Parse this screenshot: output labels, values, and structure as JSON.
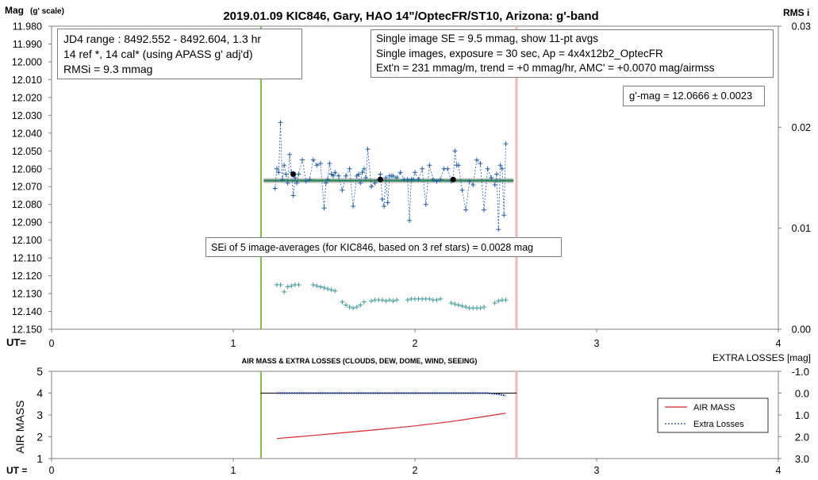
{
  "title": "2019.01.09 KIC846, Gary, HAO 14\"/OptecFR/ST10, Arizona: g'-band",
  "top_chart": {
    "ylabel_main": "Mag",
    "ylabel_sub": "(g' scale)",
    "y2label": "RMS i",
    "xlabel": "UT=",
    "info_left": [
      "JD4 range : 8492.552 - 8492.604,  1.3  hr",
      "14 ref *, 14 cal* (using APASS g' adj'd)",
      "RMSi = 9.3 mmag"
    ],
    "info_right": [
      "Single image SE = 9.5 mmag, show  11-pt avgs",
      "Single images, exposure = 30 sec, Ap = 4x4x12b2_OptecFR",
      "Ext'n = 231 mmag/m, trend =  +0 mmag/hr, AMC' = +0.0070 mag/airmss"
    ],
    "gmag_box": "g'-mag = 12.0666 ± 0.0023",
    "sei_box": "SEi of 5 image-averages (for KIC846, based on 3 ref stars) = 0.0028 mag",
    "colors": {
      "data": "#1f5fa8",
      "rms": "#3d9a9a",
      "avg_line": "#2e8b57",
      "avg_band": "#bfbfbf",
      "green_vline": "#7cc142",
      "pink_vline": "#f4b6b6"
    }
  },
  "bottom_chart": {
    "title": "AIR MASS & EXTRA LOSSES (CLOUDS, DEW, DOME, WIND, SEEING)",
    "ylabel": "AIR MASS",
    "y2label": "EXTRA LOSSES [mag]",
    "xlabel": "UT =",
    "legend": [
      "AIR MASS",
      "Extra Losses"
    ],
    "colors": {
      "airmass": "#d62728",
      "losses": "#1f3f9f"
    }
  },
  "chart_data": [
    {
      "type": "scatter",
      "title": "2019.01.09 KIC846, Gary, HAO 14\"/OptecFR/ST10, Arizona: g'-band",
      "xlabel": "UT=",
      "ylabel": "Mag (g' scale)",
      "xlim": [
        0,
        4
      ],
      "ylim": [
        12.15,
        11.98
      ],
      "y_inverted": true,
      "xticks": [
        "0",
        "1",
        "2",
        "3",
        "4"
      ],
      "yticks": [
        "11.980",
        "11.990",
        "12.000",
        "12.010",
        "12.020",
        "12.030",
        "12.040",
        "12.050",
        "12.060",
        "12.070",
        "12.080",
        "12.090",
        "12.100",
        "12.110",
        "12.120",
        "12.130",
        "12.140",
        "12.150"
      ],
      "y2lim": [
        0,
        0.03
      ],
      "y2ticks": [
        "0.00",
        "0.01",
        "0.02",
        "0.03"
      ],
      "series": [
        {
          "name": "single images",
          "x": [
            1.23,
            1.24,
            1.25,
            1.26,
            1.27,
            1.28,
            1.29,
            1.3,
            1.31,
            1.32,
            1.33,
            1.34,
            1.35,
            1.36,
            1.38,
            1.4,
            1.42,
            1.44,
            1.46,
            1.48,
            1.5,
            1.51,
            1.52,
            1.53,
            1.54,
            1.55,
            1.56,
            1.58,
            1.6,
            1.62,
            1.64,
            1.66,
            1.68,
            1.69,
            1.7,
            1.71,
            1.72,
            1.73,
            1.74,
            1.76,
            1.78,
            1.8,
            1.81,
            1.82,
            1.83,
            1.84,
            1.85,
            1.86,
            1.87,
            1.88,
            1.9,
            1.92,
            1.94,
            1.96,
            1.97,
            1.98,
            1.99,
            2.0,
            2.02,
            2.04,
            2.06,
            2.08,
            2.1,
            2.12,
            2.14,
            2.16,
            2.18,
            2.2,
            2.21,
            2.22,
            2.23,
            2.24,
            2.26,
            2.28,
            2.3,
            2.32,
            2.34,
            2.36,
            2.38,
            2.4,
            2.42,
            2.44,
            2.45,
            2.46,
            2.47,
            2.48,
            2.49,
            2.5
          ],
          "y": [
            12.071,
            12.06,
            12.062,
            12.034,
            12.066,
            12.058,
            12.063,
            12.068,
            12.052,
            12.062,
            12.075,
            12.065,
            12.068,
            12.063,
            12.055,
            12.067,
            12.066,
            12.055,
            12.058,
            12.057,
            12.082,
            12.068,
            12.066,
            12.057,
            12.063,
            12.064,
            12.062,
            12.064,
            12.072,
            12.064,
            12.06,
            12.081,
            12.064,
            12.063,
            12.068,
            12.062,
            12.06,
            12.065,
            12.049,
            12.07,
            12.068,
            12.066,
            12.063,
            12.077,
            12.081,
            12.065,
            12.079,
            12.064,
            12.064,
            12.064,
            12.065,
            12.062,
            12.066,
            12.066,
            12.089,
            12.066,
            12.066,
            12.062,
            12.066,
            12.06,
            12.08,
            12.058,
            12.066,
            12.067,
            12.066,
            12.06,
            12.06,
            12.067,
            12.066,
            12.05,
            12.058,
            12.058,
            12.072,
            12.083,
            12.067,
            12.069,
            12.055,
            12.057,
            12.083,
            12.06,
            12.065,
            12.069,
            12.063,
            12.094,
            12.058,
            12.06,
            12.086,
            12.046
          ]
        },
        {
          "name": "image-averages",
          "x": [
            1.33,
            1.81,
            2.21
          ],
          "y": [
            12.063,
            12.066,
            12.066
          ]
        },
        {
          "name": "mean g'-mag",
          "x": [
            1.15,
            2.56
          ],
          "y": [
            12.0666,
            12.0666
          ]
        },
        {
          "name": "RMS i",
          "axis": "y2",
          "x": [
            1.24,
            1.26,
            1.28,
            1.3,
            1.32,
            1.34,
            1.36,
            1.44,
            1.46,
            1.48,
            1.5,
            1.52,
            1.54,
            1.56,
            1.6,
            1.62,
            1.64,
            1.66,
            1.68,
            1.7,
            1.72,
            1.76,
            1.78,
            1.8,
            1.82,
            1.84,
            1.86,
            1.88,
            1.9,
            1.96,
            1.98,
            2.0,
            2.02,
            2.04,
            2.06,
            2.08,
            2.1,
            2.12,
            2.14,
            2.2,
            2.22,
            2.24,
            2.26,
            2.28,
            2.3,
            2.32,
            2.34,
            2.36,
            2.38,
            2.44,
            2.46,
            2.48,
            2.5
          ],
          "y": [
            0.0044,
            0.0044,
            0.0037,
            0.0042,
            0.0043,
            0.0044,
            0.0044,
            0.0044,
            0.0043,
            0.0042,
            0.0041,
            0.004,
            0.0039,
            0.0038,
            0.0027,
            0.0024,
            0.0022,
            0.0021,
            0.0022,
            0.0024,
            0.0027,
            0.0028,
            0.0029,
            0.0029,
            0.0029,
            0.0028,
            0.0029,
            0.0028,
            0.0029,
            0.0029,
            0.003,
            0.003,
            0.003,
            0.003,
            0.003,
            0.003,
            0.0029,
            0.0029,
            0.003,
            0.0026,
            0.0025,
            0.0024,
            0.0023,
            0.0022,
            0.0021,
            0.0021,
            0.0021,
            0.0021,
            0.0022,
            0.0026,
            0.0028,
            0.0029,
            0.0029
          ]
        }
      ],
      "vlines": [
        1.15,
        2.56
      ],
      "annotations": [
        "g'-mag = 12.0666 ± 0.0023",
        "SEi of 5 image-averages (for KIC846, based on 3 ref stars) = 0.0028 mag"
      ]
    },
    {
      "type": "line",
      "title": "AIR MASS & EXTRA LOSSES (CLOUDS, DEW, DOME, WIND, SEEING)",
      "xlabel": "UT =",
      "ylabel": "AIR MASS",
      "y2label": "EXTRA LOSSES [mag]",
      "xlim": [
        0,
        4
      ],
      "ylim": [
        1,
        5
      ],
      "y2lim": [
        3.0,
        -1.0
      ],
      "xticks": [
        "0",
        "1",
        "2",
        "3",
        "4"
      ],
      "yticks": [
        "1",
        "2",
        "3",
        "4",
        "5"
      ],
      "y2ticks": [
        "-1.0",
        "0.0",
        "1.0",
        "2.0",
        "3.0"
      ],
      "series": [
        {
          "name": "AIR MASS",
          "x": [
            1.24,
            1.4,
            1.6,
            1.8,
            2.0,
            2.2,
            2.4,
            2.5
          ],
          "y": [
            1.92,
            2.03,
            2.18,
            2.33,
            2.5,
            2.7,
            2.95,
            3.08
          ]
        },
        {
          "name": "Extra Losses",
          "axis": "y2",
          "x": [
            1.24,
            1.4,
            1.6,
            1.8,
            2.0,
            2.2,
            2.4,
            2.46,
            2.5
          ],
          "y": [
            0.0,
            0.0,
            0.0,
            0.0,
            0.0,
            0.0,
            0.0,
            0.05,
            0.12
          ]
        }
      ],
      "vlines": [
        1.15,
        2.56
      ],
      "legend": "right"
    }
  ]
}
